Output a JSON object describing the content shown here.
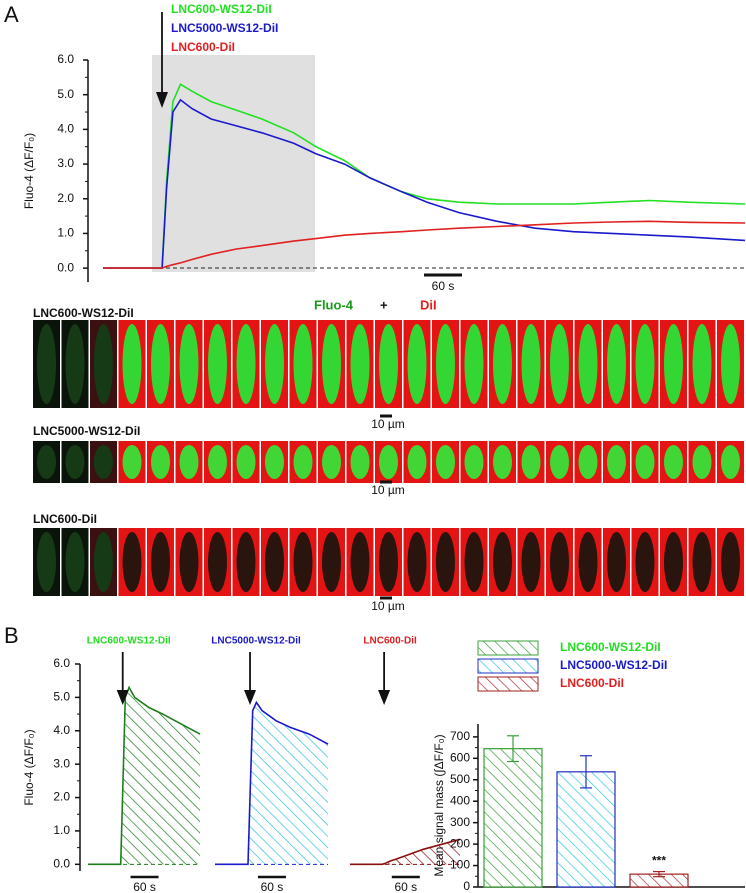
{
  "panel_labels": [
    "A",
    "B"
  ],
  "images": {
    "title_parts": [
      "Fluo-4",
      "+",
      "DiI"
    ],
    "rows": [
      {
        "label": "LNC600-WS12-DiI",
        "scale_bar": "10 µm"
      },
      {
        "label": "LNC5000-WS12-DiI",
        "scale_bar": "10 µm"
      },
      {
        "label": "LNC600-DiI",
        "scale_bar": "10 µm"
      }
    ]
  },
  "chart_data": [
    {
      "type": "line",
      "ylabel": "Fluo-4  (ΔF/F₀)",
      "scale_bar": "60 s",
      "x": [
        0,
        40,
        80,
        93,
        100,
        110,
        122,
        140,
        170,
        210,
        250,
        300,
        335,
        380,
        420,
        470,
        510,
        560,
        620,
        680,
        740,
        800,
        860,
        920,
        1010
      ],
      "xlim": [
        0,
        1010
      ],
      "ylim": [
        -0.4,
        6
      ],
      "yticks": [
        {
          "value": 0,
          "label": "0.0"
        },
        {
          "value": 1,
          "label": "1.0"
        },
        {
          "value": 2,
          "label": "2.0"
        },
        {
          "value": 3,
          "label": "3.0"
        },
        {
          "value": 4,
          "label": "4.0"
        },
        {
          "value": 5,
          "label": "5.0"
        },
        {
          "value": 6,
          "label": "6.0"
        }
      ],
      "series": [
        {
          "name": "LNC600-WS12-DiI",
          "color": "#22e022",
          "values": [
            0,
            0,
            0,
            0,
            2.5,
            4.8,
            5.3,
            5.1,
            4.8,
            4.55,
            4.3,
            3.9,
            3.5,
            3.1,
            2.6,
            2.2,
            2.0,
            1.9,
            1.85,
            1.85,
            1.85,
            1.9,
            1.95,
            1.9,
            1.85
          ]
        },
        {
          "name": "LNC5000-WS12-DiI",
          "color": "#1a1acc",
          "values": [
            0,
            0,
            0,
            0,
            2.3,
            4.5,
            4.85,
            4.6,
            4.3,
            4.1,
            3.9,
            3.6,
            3.3,
            3.0,
            2.6,
            2.2,
            1.9,
            1.6,
            1.35,
            1.15,
            1.05,
            1.0,
            0.95,
            0.9,
            0.8
          ]
        },
        {
          "name": "LNC600-DiI",
          "color": "#e02020",
          "values": [
            0,
            0,
            0,
            0,
            0.05,
            0.1,
            0.15,
            0.25,
            0.4,
            0.55,
            0.65,
            0.78,
            0.85,
            0.95,
            1.0,
            1.05,
            1.1,
            1.15,
            1.2,
            1.25,
            1.3,
            1.33,
            1.35,
            1.32,
            1.3
          ]
        }
      ]
    },
    {
      "type": "line",
      "ylabel": "Fluo-4  (ΔF/F₀)",
      "scale_bar": "60 s",
      "fill": "hatch",
      "x": [
        0,
        40,
        70,
        75,
        80,
        88,
        100,
        130,
        160,
        200,
        240
      ],
      "xlim": [
        0,
        240
      ],
      "ylim": [
        -0.2,
        6
      ],
      "yticks": [
        {
          "value": 0,
          "label": "0.0"
        },
        {
          "value": 1,
          "label": "1.0"
        },
        {
          "value": 2,
          "label": "2.0"
        },
        {
          "value": 3,
          "label": "3.0"
        },
        {
          "value": 4,
          "label": "4.0"
        },
        {
          "value": 5,
          "label": "5.0"
        },
        {
          "value": 6,
          "label": "6.0"
        }
      ],
      "series": [
        {
          "name": "LNC600-WS12-DiI",
          "color": "#1e7e1e",
          "label_color": "#22dd22",
          "values": [
            0,
            0,
            0,
            2.5,
            5.0,
            5.3,
            5.0,
            4.7,
            4.5,
            4.2,
            3.9
          ]
        }
      ]
    },
    {
      "type": "line",
      "scale_bar": "60 s",
      "fill": "hatch",
      "x": [
        0,
        40,
        70,
        75,
        80,
        88,
        100,
        130,
        160,
        200,
        240
      ],
      "xlim": [
        0,
        240
      ],
      "ylim": [
        -0.2,
        6
      ],
      "series": [
        {
          "name": "LNC5000-WS12-DiI",
          "color": "#1a1acc",
          "label_color": "#1a1acc",
          "hatch_color": "#30c0e0",
          "values": [
            0,
            0,
            0,
            2.3,
            4.6,
            4.85,
            4.6,
            4.3,
            4.1,
            3.9,
            3.6
          ]
        }
      ]
    },
    {
      "type": "line",
      "scale_bar": "60 s",
      "fill": "hatch",
      "x": [
        0,
        40,
        70,
        75,
        80,
        88,
        100,
        130,
        160,
        200,
        240
      ],
      "xlim": [
        0,
        240
      ],
      "ylim": [
        -0.2,
        6
      ],
      "series": [
        {
          "name": "LNC600-DiI",
          "color": "#8a1010",
          "label_color": "#e02020",
          "values": [
            0,
            0,
            0,
            0.02,
            0.05,
            0.1,
            0.15,
            0.3,
            0.45,
            0.6,
            0.75
          ]
        }
      ]
    },
    {
      "type": "bar",
      "ylabel": "Mean signal mass (∫ΔF/F₀)",
      "ylim": [
        0,
        760
      ],
      "yticks": [
        0,
        100,
        200,
        300,
        400,
        500,
        600,
        700
      ],
      "series": [
        {
          "name": "LNC600-WS12-DiI",
          "color": "#3aa03a",
          "edgecolor": "#3aa03a",
          "label_color": "#22dd22",
          "values": [
            645
          ],
          "errors": [
            60
          ]
        },
        {
          "name": "LNC5000-WS12-DiI",
          "color": "#30c8e0",
          "edgecolor": "#2030c0",
          "label_color": "#1a1acc",
          "values": [
            537
          ],
          "errors": [
            75
          ]
        },
        {
          "name": "LNC600-DiI",
          "color": "#b03030",
          "edgecolor": "#a02020",
          "label_color": "#e02020",
          "values": [
            60
          ],
          "errors": [
            12
          ]
        }
      ],
      "annotations": [
        {
          "text": "***"
        }
      ]
    }
  ]
}
